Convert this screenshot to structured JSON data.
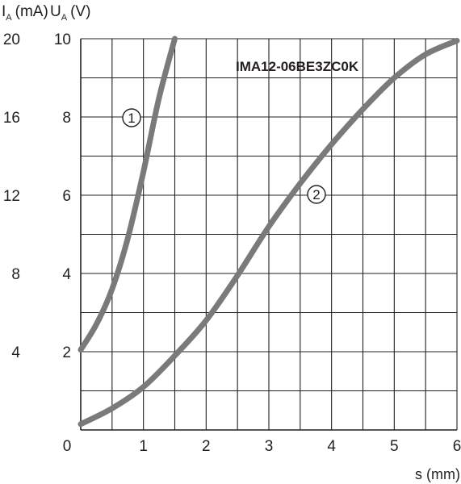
{
  "chart_data": {
    "type": "line",
    "annotation": "IMA12-06BE3ZC0K",
    "xlabel": "s (mm)",
    "y_left": {
      "label_main": "I",
      "label_sub": "A",
      "label_unit": "(mA)",
      "ticks": [
        "4",
        "8",
        "12",
        "16",
        "20"
      ]
    },
    "y_right": {
      "label_main": "U",
      "label_sub": "A",
      "label_unit": "(V)",
      "ticks": [
        "2",
        "4",
        "6",
        "8",
        "10"
      ]
    },
    "x_ticks": [
      "0",
      "1",
      "2",
      "3",
      "4",
      "5",
      "6"
    ],
    "xlim": [
      0,
      6
    ],
    "ylim_current_mA": [
      0,
      20
    ],
    "ylim_voltage_V": [
      0,
      10
    ],
    "grid": true,
    "series": [
      {
        "marker": "1",
        "unit": "V",
        "x": [
          0.0,
          0.25,
          0.5,
          0.75,
          1.0,
          1.25,
          1.5
        ],
        "y": [
          2.05,
          2.7,
          3.6,
          4.9,
          6.6,
          8.5,
          10.0
        ]
      },
      {
        "marker": "2",
        "unit": "V",
        "x": [
          0.0,
          0.5,
          1.0,
          1.5,
          2.0,
          2.5,
          3.0,
          3.5,
          4.0,
          4.5,
          5.0,
          5.5,
          6.0
        ],
        "y": [
          0.15,
          0.55,
          1.1,
          1.9,
          2.8,
          3.95,
          5.2,
          6.3,
          7.3,
          8.2,
          9.0,
          9.6,
          9.95
        ]
      }
    ],
    "line_color": "#7a7a7a"
  }
}
